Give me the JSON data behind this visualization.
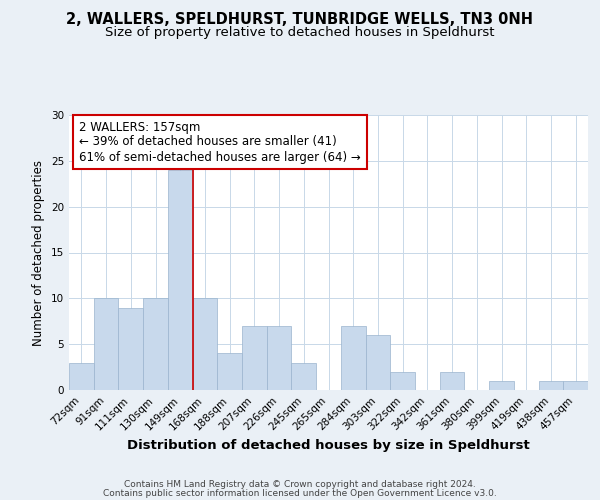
{
  "title_line1": "2, WALLERS, SPELDHURST, TUNBRIDGE WELLS, TN3 0NH",
  "title_line2": "Size of property relative to detached houses in Speldhurst",
  "xlabel": "Distribution of detached houses by size in Speldhurst",
  "ylabel": "Number of detached properties",
  "footer_line1": "Contains HM Land Registry data © Crown copyright and database right 2024.",
  "footer_line2": "Contains public sector information licensed under the Open Government Licence v3.0.",
  "annotation_line1": "2 WALLERS: 157sqm",
  "annotation_line2": "← 39% of detached houses are smaller (41)",
  "annotation_line3": "61% of semi-detached houses are larger (64) →",
  "bar_labels": [
    "72sqm",
    "91sqm",
    "111sqm",
    "130sqm",
    "149sqm",
    "168sqm",
    "188sqm",
    "207sqm",
    "226sqm",
    "245sqm",
    "265sqm",
    "284sqm",
    "303sqm",
    "322sqm",
    "342sqm",
    "361sqm",
    "380sqm",
    "399sqm",
    "419sqm",
    "438sqm",
    "457sqm"
  ],
  "bar_values": [
    3,
    10,
    9,
    10,
    24,
    10,
    4,
    7,
    7,
    3,
    0,
    7,
    6,
    2,
    0,
    2,
    0,
    1,
    0,
    1,
    1
  ],
  "bar_color": "#c8d9ec",
  "bar_edge_color": "#9ab4ce",
  "redline_index": 4.5,
  "ylim": [
    0,
    30
  ],
  "yticks": [
    0,
    5,
    10,
    15,
    20,
    25,
    30
  ],
  "bg_color": "#eaf0f6",
  "plot_bg_color": "#ffffff",
  "grid_color": "#c8d8e8",
  "annotation_box_edge": "#cc0000",
  "redline_color": "#cc0000",
  "title_fontsize": 10.5,
  "subtitle_fontsize": 9.5,
  "xlabel_fontsize": 9.5,
  "ylabel_fontsize": 8.5,
  "tick_fontsize": 7.5,
  "annotation_fontsize": 8.5,
  "footer_fontsize": 6.5
}
